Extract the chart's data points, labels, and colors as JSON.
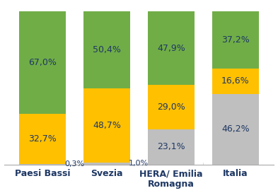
{
  "categories": [
    "Paesi Bassi",
    "Svezia",
    "HERA/ Emilia\nRomagna",
    "Italia"
  ],
  "segments": [
    {
      "label": "gray",
      "values": [
        0.3,
        1.0,
        23.1,
        46.2
      ],
      "color": "#bfbfbf"
    },
    {
      "label": "yellow",
      "values": [
        32.7,
        48.7,
        29.0,
        16.6
      ],
      "color": "#ffc000"
    },
    {
      "label": "green",
      "values": [
        67.0,
        50.4,
        47.9,
        37.2
      ],
      "color": "#70ad47"
    }
  ],
  "text_labels": [
    [
      "0,3%",
      "32,7%",
      "67,0%"
    ],
    [
      "1,0%",
      "48,7%",
      "50,4%"
    ],
    [
      "23,1%",
      "29,0%",
      "47,9%"
    ],
    [
      "46,2%",
      "16,6%",
      "37,2%"
    ]
  ],
  "small_label_offset": [
    [
      true,
      false,
      false
    ],
    [
      true,
      false,
      false
    ],
    [
      false,
      false,
      false
    ],
    [
      false,
      false,
      false
    ]
  ],
  "bar_width": 0.72,
  "background_color": "#ffffff",
  "text_color": "#1f3864",
  "font_size": 9,
  "label_font_size": 9,
  "ylim": [
    0,
    105
  ]
}
